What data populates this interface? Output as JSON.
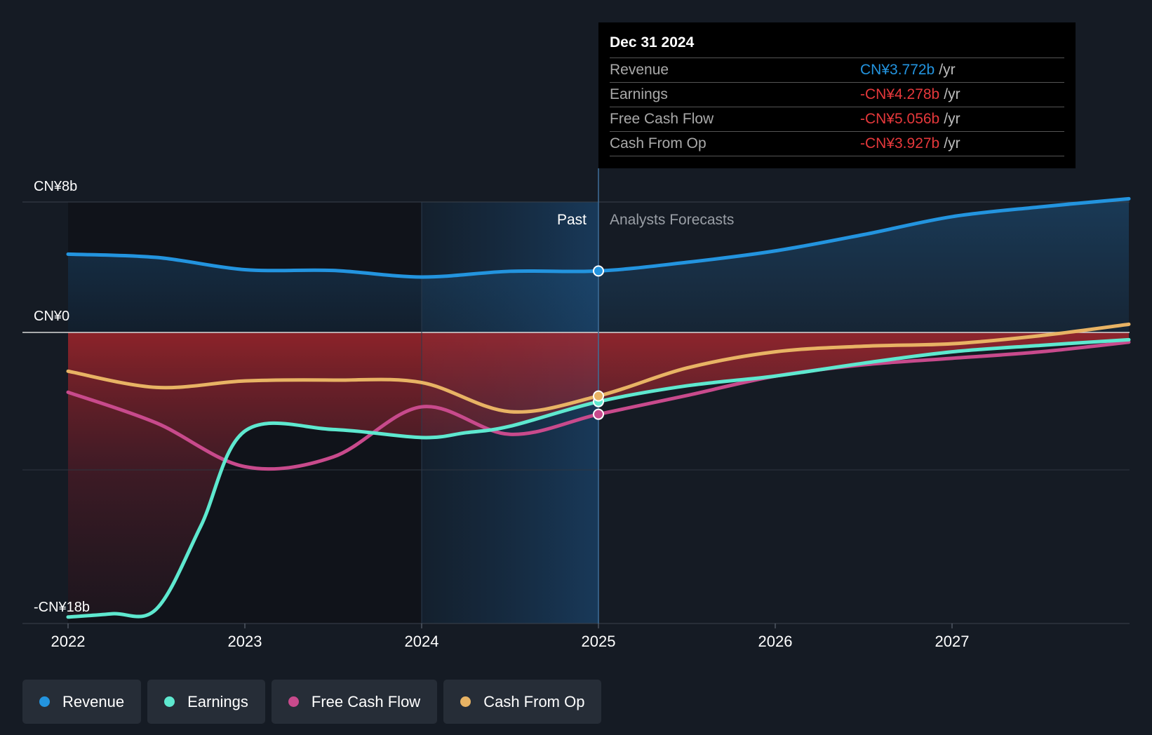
{
  "chart_data": {
    "type": "area",
    "x_ticks": [
      "2022",
      "2023",
      "2024",
      "2025",
      "2026",
      "2027"
    ],
    "y_ticks": [
      "CN¥8b",
      "CN¥0",
      "-CN¥18b"
    ],
    "ylim": [
      -18,
      8
    ],
    "past_label": "Past",
    "forecast_label": "Analysts Forecasts",
    "divider_x": 2025.0,
    "series": [
      {
        "name": "Revenue",
        "color": "#2394df",
        "points": [
          [
            2022.0,
            4.8
          ],
          [
            2022.5,
            4.6
          ],
          [
            2023.0,
            3.85
          ],
          [
            2023.5,
            3.8
          ],
          [
            2024.0,
            3.4
          ],
          [
            2024.5,
            3.75
          ],
          [
            2025.0,
            3.77
          ],
          [
            2025.5,
            4.3
          ],
          [
            2026.0,
            5.0
          ],
          [
            2026.5,
            6.0
          ],
          [
            2027.0,
            7.1
          ],
          [
            2027.5,
            7.7
          ],
          [
            2028.0,
            8.2
          ]
        ]
      },
      {
        "name": "Earnings",
        "color": "#5ee8cf",
        "points": [
          [
            2022.0,
            -17.6
          ],
          [
            2022.25,
            -17.4
          ],
          [
            2022.5,
            -17.1
          ],
          [
            2022.75,
            -12.0
          ],
          [
            2023.0,
            -6.1
          ],
          [
            2023.5,
            -6.0
          ],
          [
            2024.0,
            -6.5
          ],
          [
            2024.25,
            -6.2
          ],
          [
            2024.5,
            -5.8
          ],
          [
            2025.0,
            -4.28
          ],
          [
            2025.5,
            -3.3
          ],
          [
            2026.0,
            -2.7
          ],
          [
            2026.5,
            -1.9
          ],
          [
            2027.0,
            -1.2
          ],
          [
            2027.5,
            -0.8
          ],
          [
            2028.0,
            -0.45
          ]
        ]
      },
      {
        "name": "Free Cash Flow",
        "color": "#c84a8c",
        "points": [
          [
            2022.0,
            -3.7
          ],
          [
            2022.5,
            -5.6
          ],
          [
            2023.0,
            -8.3
          ],
          [
            2023.5,
            -7.7
          ],
          [
            2024.0,
            -4.6
          ],
          [
            2024.5,
            -6.3
          ],
          [
            2025.0,
            -5.06
          ],
          [
            2025.5,
            -3.9
          ],
          [
            2026.0,
            -2.7
          ],
          [
            2026.5,
            -2.0
          ],
          [
            2027.0,
            -1.6
          ],
          [
            2027.5,
            -1.2
          ],
          [
            2028.0,
            -0.6
          ]
        ]
      },
      {
        "name": "Cash From Op",
        "color": "#e8b364",
        "points": [
          [
            2022.0,
            -2.4
          ],
          [
            2022.5,
            -3.4
          ],
          [
            2023.0,
            -3.0
          ],
          [
            2023.5,
            -2.95
          ],
          [
            2024.0,
            -3.1
          ],
          [
            2024.5,
            -4.9
          ],
          [
            2025.0,
            -3.93
          ],
          [
            2025.5,
            -2.2
          ],
          [
            2026.0,
            -1.2
          ],
          [
            2026.5,
            -0.85
          ],
          [
            2027.0,
            -0.7
          ],
          [
            2027.5,
            -0.2
          ],
          [
            2028.0,
            0.5
          ]
        ]
      }
    ]
  },
  "tooltip": {
    "date": "Dec 31 2024",
    "rows": [
      {
        "label": "Revenue",
        "value": "CN¥3.772b",
        "unit": "/yr",
        "color": "#2394df"
      },
      {
        "label": "Earnings",
        "value": "-CN¥4.278b",
        "unit": "/yr",
        "color": "#e5383b"
      },
      {
        "label": "Free Cash Flow",
        "value": "-CN¥5.056b",
        "unit": "/yr",
        "color": "#e5383b"
      },
      {
        "label": "Cash From Op",
        "value": "-CN¥3.927b",
        "unit": "/yr",
        "color": "#e5383b"
      }
    ]
  },
  "legend": [
    {
      "label": "Revenue",
      "color": "#2394df"
    },
    {
      "label": "Earnings",
      "color": "#5ee8cf"
    },
    {
      "label": "Free Cash Flow",
      "color": "#c84a8c"
    },
    {
      "label": "Cash From Op",
      "color": "#e8b364"
    }
  ]
}
